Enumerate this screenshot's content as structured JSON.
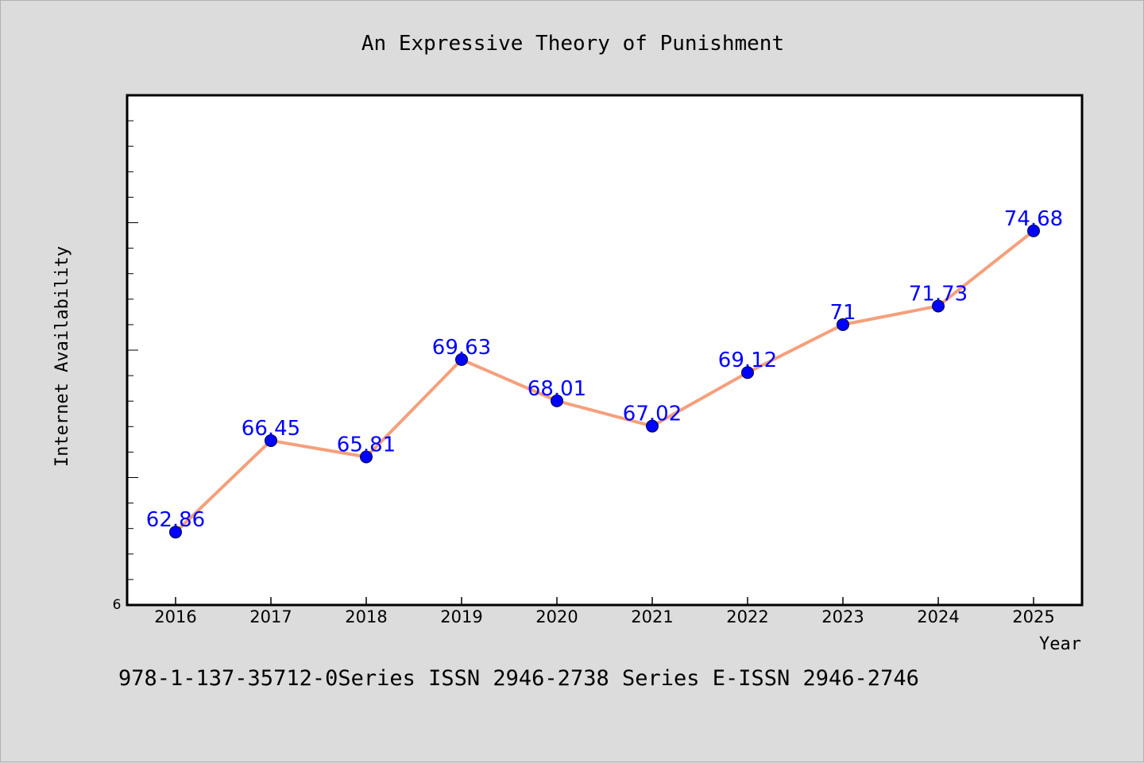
{
  "chart_data": {
    "type": "line",
    "title": "An Expressive Theory of Punishment",
    "xlabel": "Year",
    "ylabel": "Internet Availability",
    "x": [
      "2016",
      "2017",
      "2018",
      "2019",
      "2020",
      "2021",
      "2022",
      "2023",
      "2024",
      "2025"
    ],
    "series": [
      {
        "values": [
          62.86,
          66.45,
          65.81,
          69.63,
          68.01,
          67.02,
          69.12,
          71,
          71.73,
          74.68
        ],
        "labels": [
          "62.86",
          "66.45",
          "65.81",
          "69.63",
          "68.01",
          "67.02",
          "69.12",
          "71",
          "71.73",
          "74.68"
        ]
      }
    ],
    "ylim": [
      60,
      80
    ],
    "ytick_labels": [
      "6"
    ],
    "grid": false,
    "colors": {
      "line": "#f4a07c",
      "marker": "#0000ff",
      "data_label": "#0000ff",
      "background": "#dcdcdc",
      "plot_background": "#ffffff"
    }
  },
  "footer": {
    "text": "978-1-137-35712-0Series ISSN 2946-2738 Series E-ISSN 2946-2746"
  }
}
